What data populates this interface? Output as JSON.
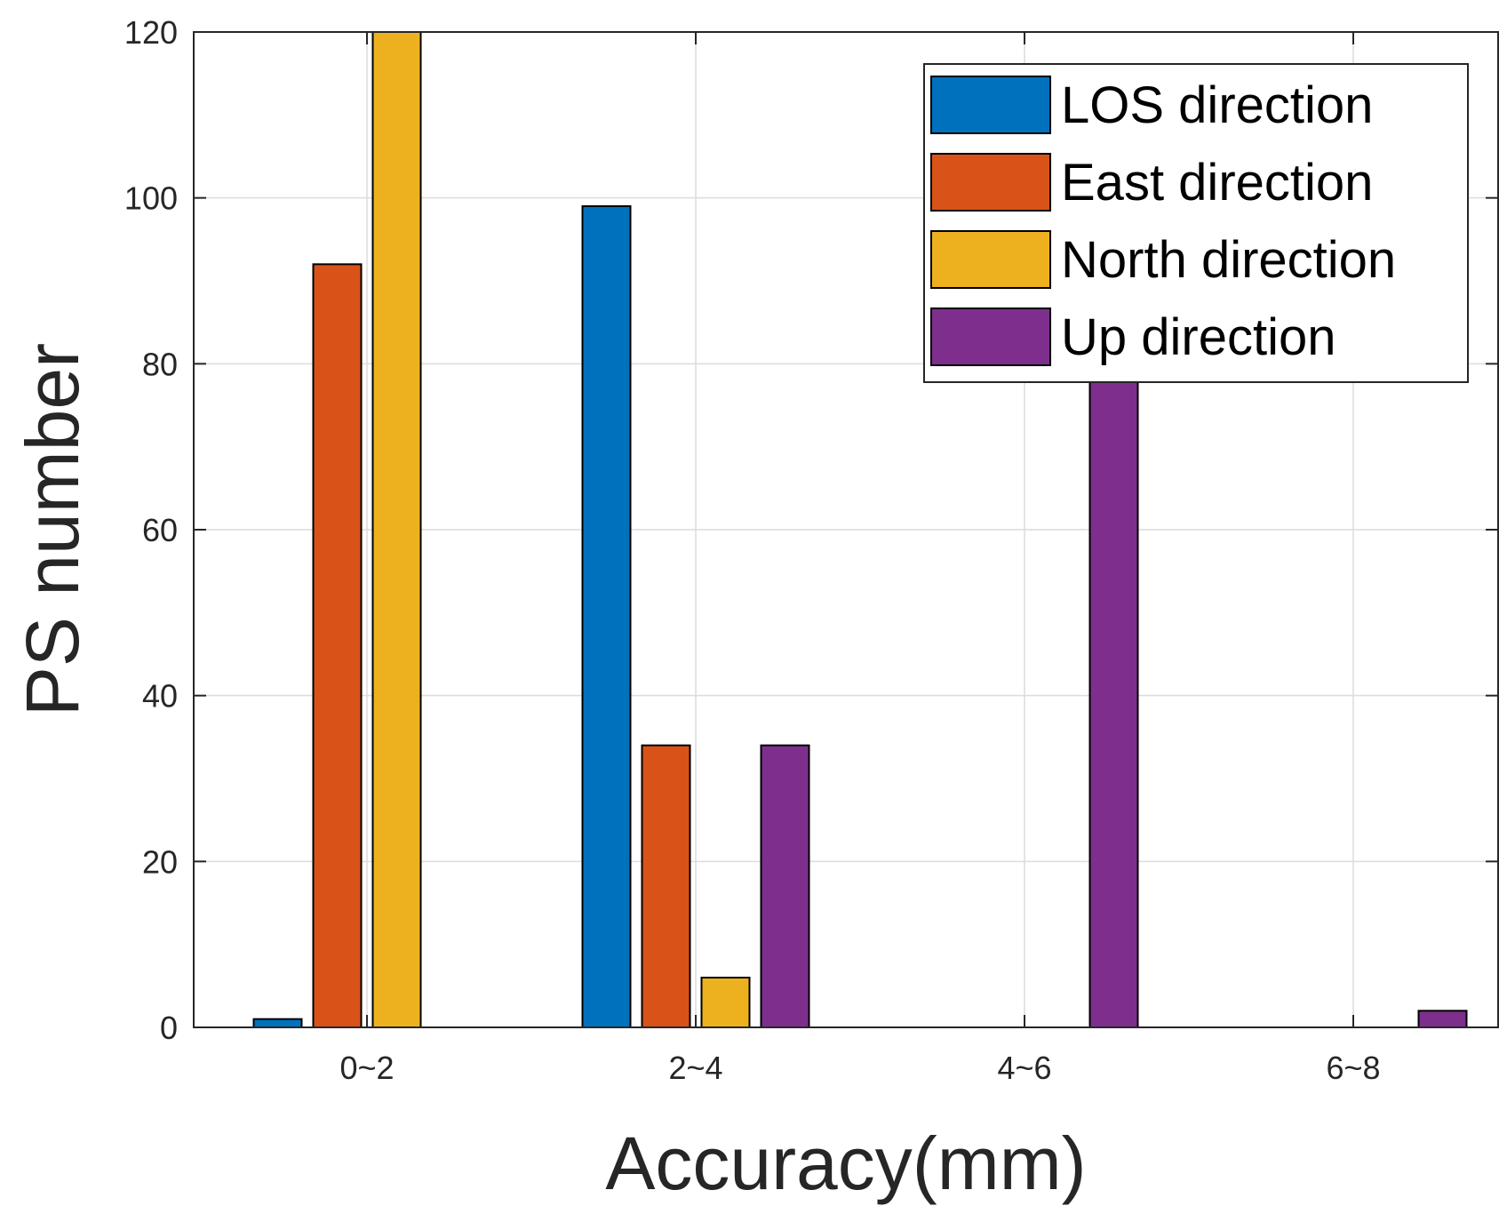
{
  "chart_data": {
    "type": "bar",
    "title": "",
    "xlabel": "Accuracy(mm)",
    "ylabel": "PS number",
    "categories": [
      "0~2",
      "2~4",
      "4~6",
      "6~8"
    ],
    "ylim": [
      0,
      120
    ],
    "yticks": [
      0,
      20,
      40,
      60,
      80,
      100,
      120
    ],
    "grid": true,
    "legend_position": "top-right",
    "series": [
      {
        "name": "LOS direction",
        "color": "#0072BD",
        "values": [
          1,
          99,
          0,
          0
        ]
      },
      {
        "name": "East direction",
        "color": "#D95319",
        "values": [
          92,
          34,
          0,
          0
        ]
      },
      {
        "name": "North direction",
        "color": "#EDB120",
        "values": [
          123,
          6,
          0,
          0
        ]
      },
      {
        "name": "Up direction",
        "color": "#7E2F8E",
        "values": [
          0,
          34,
          85,
          2
        ]
      }
    ]
  }
}
